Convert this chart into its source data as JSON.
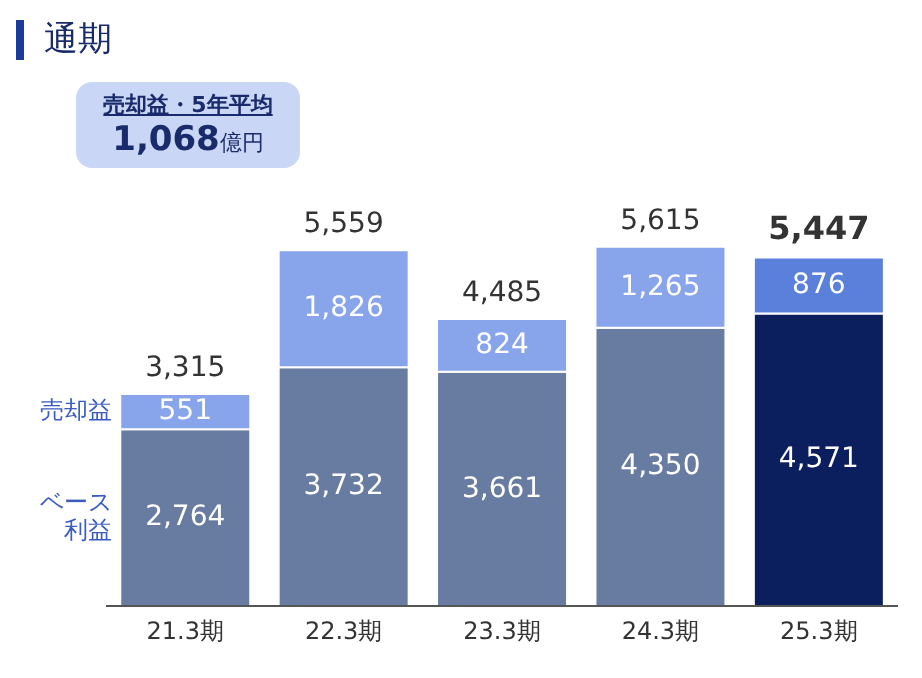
{
  "chart_data": {
    "type": "bar",
    "title": "通期",
    "stacked": true,
    "categories": [
      "21.3期",
      "22.3期",
      "23.3期",
      "24.3期",
      "25.3期"
    ],
    "series": [
      {
        "name": "ベース利益",
        "colors": [
          "#687ba0",
          "#687ba0",
          "#687ba0",
          "#687ba0",
          "#0b1f5e"
        ],
        "values": [
          2764,
          3732,
          3661,
          4350,
          4571
        ],
        "value_labels": [
          "2,764",
          "3,732",
          "3,661",
          "4,350",
          "4,571"
        ]
      },
      {
        "name": "売却益",
        "colors": [
          "#88a4ea",
          "#88a4ea",
          "#88a4ea",
          "#88a4ea",
          "#5a80dc"
        ],
        "values": [
          551,
          1826,
          824,
          1265,
          876
        ],
        "value_labels": [
          "551",
          "1,826",
          "824",
          "1,265",
          "876"
        ]
      }
    ],
    "totals": [
      "3,315",
      "5,559",
      "4,485",
      "5,615",
      "5,447"
    ],
    "annotations": [
      "売却益・5年平均",
      "1,068億円"
    ]
  }
}
